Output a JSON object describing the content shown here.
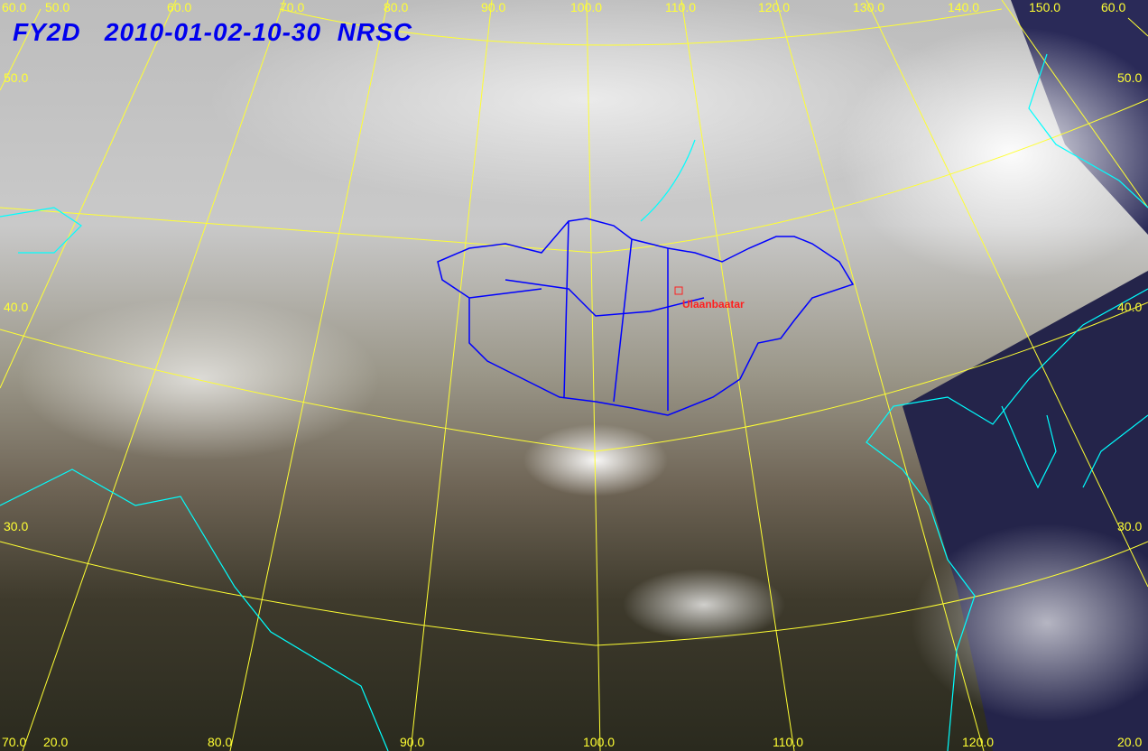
{
  "title": "FY2D   2010-01-02-10-30  NRSC",
  "colors": {
    "title": "#0000ee",
    "graticule": "#ffff33",
    "coastline": "#00ffff",
    "boundary": "#0000ff",
    "city": "#ff2020"
  },
  "top_labels": [
    "60.0",
    "50.0",
    "60.0",
    "70.0",
    "80.0",
    "90.0",
    "100.0",
    "110.0",
    "120.0",
    "130.0",
    "140.0",
    "150.0",
    "60.0"
  ],
  "left_labels": [
    "50.0",
    "40.0",
    "30.0"
  ],
  "right_labels": [
    "50.0",
    "40.0",
    "30.0"
  ],
  "bottom_labels": [
    "70.0",
    "20.0",
    "80.0",
    "90.0",
    "100.0",
    "110.0",
    "120.0",
    "20.0"
  ],
  "city": "Ulaanbaatar"
}
